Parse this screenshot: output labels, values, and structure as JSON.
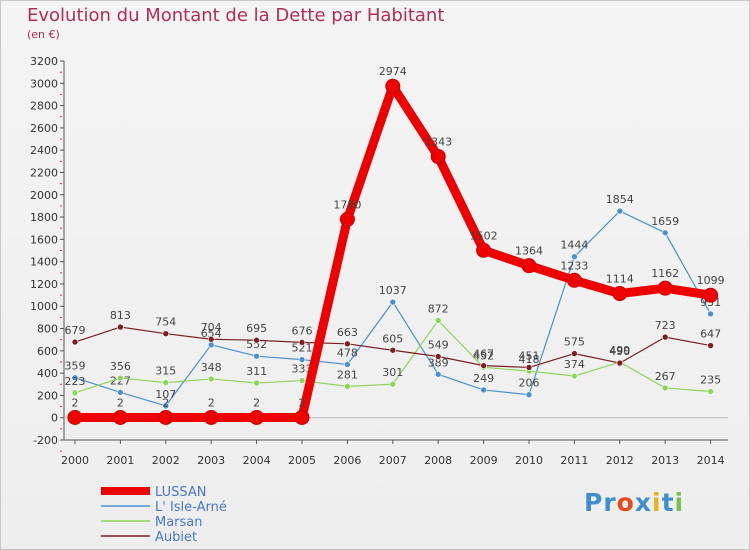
{
  "title": "Evolution du Montant de la Dette par Habitant",
  "subtitle": "(en €)",
  "logo": {
    "letters": [
      "P",
      "r",
      "o",
      "x",
      "i",
      "t",
      "i"
    ],
    "colors": [
      "#3f8fd0",
      "#3f8fd0",
      "#e84a1c",
      "#3f8fd0",
      "#e8b21c",
      "#3f8fd0",
      "#7cc04a"
    ]
  },
  "chart_data": {
    "type": "line",
    "title": "Evolution du Montant de la Dette par Habitant",
    "subtitle": "(en €)",
    "xlabel": "",
    "ylabel": "",
    "x": [
      "2000",
      "2001",
      "2002",
      "2003",
      "2004",
      "2005",
      "2006",
      "2007",
      "2008",
      "2009",
      "2010",
      "2011",
      "2012",
      "2013",
      "2014"
    ],
    "ylim": [
      -200,
      3200
    ],
    "yticks": [
      -200,
      0,
      200,
      400,
      600,
      800,
      1000,
      1200,
      1400,
      1600,
      1800,
      2000,
      2200,
      2400,
      2600,
      2800,
      3000,
      3200
    ],
    "grid": false,
    "legend": "bottom-left",
    "series": [
      {
        "name": "LUSSAN",
        "color": "#ee0000",
        "values": [
          2,
          2,
          2,
          2,
          2,
          2,
          1780,
          2974,
          2343,
          1502,
          1364,
          1233,
          1114,
          1162,
          1099
        ]
      },
      {
        "name": "L' Isle-Arné",
        "color": "#4a90d0",
        "values": [
          359,
          227,
          107,
          654,
          552,
          521,
          478,
          1037,
          389,
          249,
          206,
          1444,
          1854,
          1659,
          931
        ]
      },
      {
        "name": "Marsan",
        "color": "#8ed45a",
        "values": [
          223,
          356,
          315,
          348,
          311,
          333,
          281,
          301,
          872,
          452,
          418,
          374,
          499,
          267,
          235
        ]
      },
      {
        "name": "Aubiet",
        "color": "#7a2020",
        "values": [
          679,
          813,
          754,
          704,
          695,
          676,
          663,
          605,
          549,
          467,
          451,
          575,
          490,
          723,
          647
        ]
      }
    ]
  }
}
